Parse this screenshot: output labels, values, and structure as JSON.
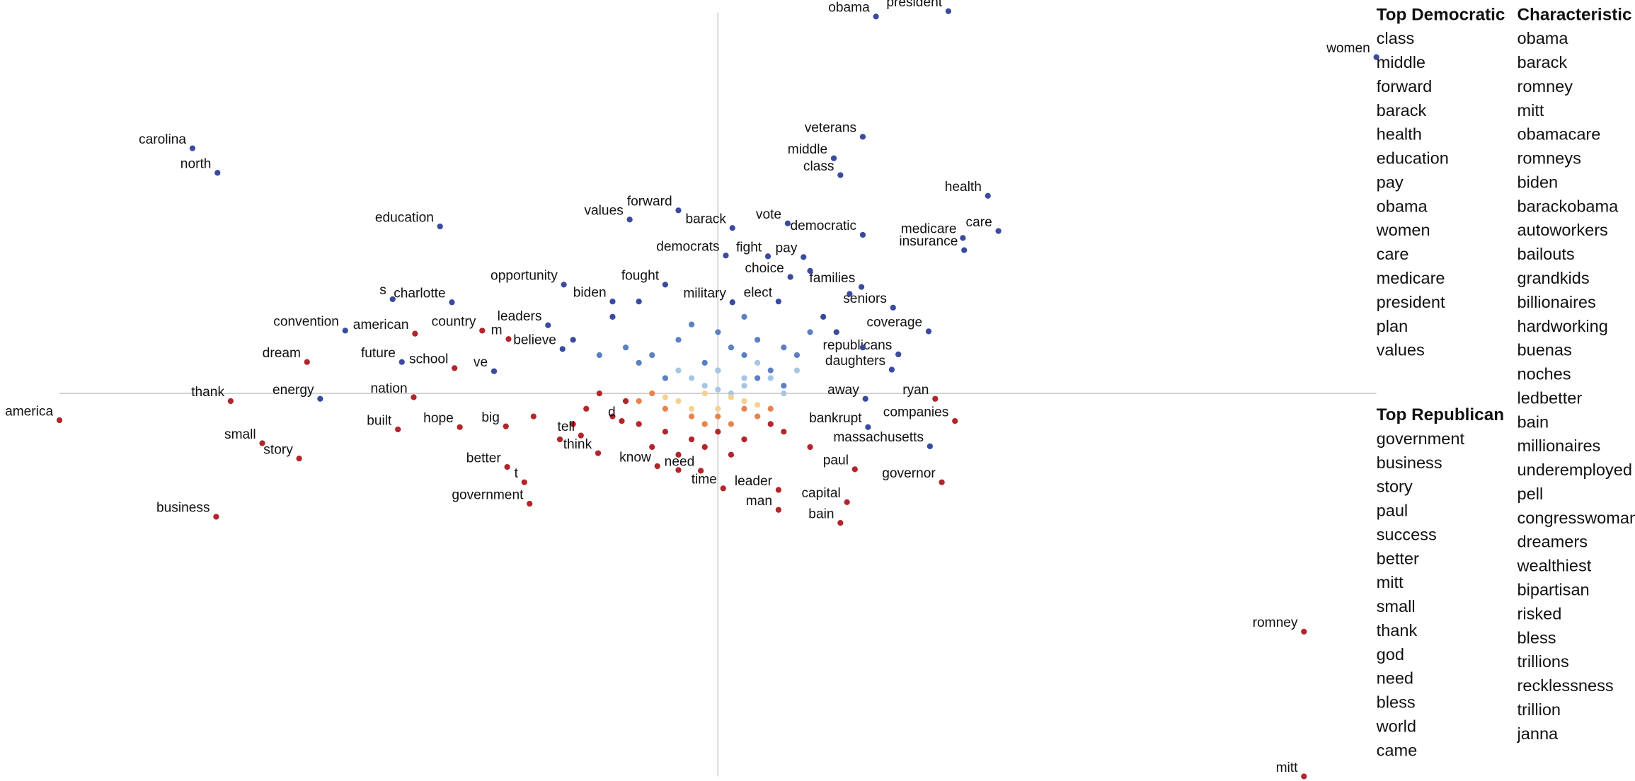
{
  "chart_data": {
    "type": "scatter",
    "xlim": [
      0,
      1
    ],
    "ylim": [
      0,
      1
    ],
    "xticks": [
      0.5
    ],
    "yticks": [
      0.5
    ],
    "series": [
      {
        "color": "#3a4b9e",
        "x": [
          0.62,
          0.675,
          1.0,
          0.101,
          0.12,
          0.61,
          0.588,
          0.593,
          0.705,
          0.289,
          0.433,
          0.47,
          0.511,
          0.553,
          0.61,
          0.713,
          0.686,
          0.687,
          0.506,
          0.538,
          0.565,
          0.383,
          0.46,
          0.555,
          0.609,
          0.253,
          0.298,
          0.42,
          0.511,
          0.546,
          0.633,
          0.217,
          0.371,
          0.382,
          0.66,
          0.637,
          0.632,
          0.26,
          0.33,
          0.198,
          0.612,
          0.614,
          0.661
        ],
        "values": [
          0.992,
          0.999,
          0.939,
          0.82,
          0.788,
          0.835,
          0.807,
          0.785,
          0.758,
          0.718,
          0.727,
          0.739,
          0.716,
          0.722,
          0.707,
          0.712,
          0.703,
          0.687,
          0.68,
          0.679,
          0.678,
          0.642,
          0.642,
          0.652,
          0.639,
          0.623,
          0.619,
          0.62,
          0.619,
          0.62,
          0.612,
          0.582,
          0.589,
          0.558,
          0.581,
          0.551,
          0.531,
          0.541,
          0.529,
          0.493,
          0.493,
          0.456,
          0.431
        ],
        "labels": [
          "obama",
          "president",
          "women",
          "carolina",
          "north",
          "veterans",
          "middle",
          "class",
          "health",
          "education",
          "values",
          "forward",
          "barack",
          "vote",
          "democratic",
          "care",
          "medicare",
          "insurance",
          "democrats",
          "fight",
          "pay",
          "opportunity",
          "fought",
          "choice",
          "families",
          "s",
          "charlotte",
          "biden",
          "military",
          "elect",
          "seniors",
          "convention",
          "leaders",
          "believe",
          "coverage",
          "republicans",
          "daughters",
          "future",
          "ve",
          "energy",
          "away",
          "bankrupt",
          "massachusetts"
        ]
      },
      {
        "color": "#3a4b9e",
        "x": [
          0.42,
          0.44,
          0.58,
          0.6,
          0.57,
          0.59,
          0.39,
          0.61
        ],
        "values": [
          0.6,
          0.62,
          0.6,
          0.63,
          0.66,
          0.58,
          0.57,
          0.56
        ]
      },
      {
        "color": "#5b80c2",
        "x": [
          0.43,
          0.45,
          0.47,
          0.49,
          0.5,
          0.51,
          0.52,
          0.53,
          0.54,
          0.55,
          0.46,
          0.48,
          0.52,
          0.56,
          0.44,
          0.5,
          0.53,
          0.57,
          0.41,
          0.55
        ],
        "values": [
          0.56,
          0.55,
          0.57,
          0.54,
          0.58,
          0.56,
          0.55,
          0.57,
          0.53,
          0.56,
          0.52,
          0.59,
          0.6,
          0.55,
          0.54,
          0.53,
          0.52,
          0.58,
          0.55,
          0.51
        ]
      },
      {
        "color": "#a6c6e3",
        "x": [
          0.48,
          0.5,
          0.52,
          0.54,
          0.51,
          0.53,
          0.49,
          0.55,
          0.56,
          0.47,
          0.52,
          0.5
        ],
        "values": [
          0.52,
          0.53,
          0.51,
          0.52,
          0.5,
          0.54,
          0.51,
          0.5,
          0.53,
          0.53,
          0.52,
          0.505
        ]
      },
      {
        "color": "#b2262b",
        "x": [
          0.4,
          0.42,
          0.44,
          0.46,
          0.48,
          0.5,
          0.52,
          0.54,
          0.43,
          0.45,
          0.47,
          0.49,
          0.51,
          0.41,
          0.39,
          0.36,
          0.38,
          0.55,
          0.57,
          0.47
        ],
        "values": [
          0.48,
          0.47,
          0.46,
          0.45,
          0.44,
          0.45,
          0.44,
          0.46,
          0.49,
          0.43,
          0.42,
          0.43,
          0.42,
          0.5,
          0.46,
          0.47,
          0.44,
          0.45,
          0.43,
          0.4
        ]
      },
      {
        "color": "#e8834f",
        "x": [
          0.44,
          0.46,
          0.48,
          0.5,
          0.52,
          0.54,
          0.45,
          0.49,
          0.51,
          0.53
        ],
        "values": [
          0.49,
          0.48,
          0.47,
          0.47,
          0.48,
          0.48,
          0.5,
          0.46,
          0.46,
          0.47
        ]
      },
      {
        "color": "#f6d28f",
        "x": [
          0.47,
          0.49,
          0.5,
          0.51,
          0.52,
          0.48,
          0.53,
          0.46
        ],
        "values": [
          0.49,
          0.5,
          0.48,
          0.495,
          0.49,
          0.48,
          0.485,
          0.495
        ]
      },
      {
        "color": "#b2262b",
        "x": [
          0.321,
          0.341,
          0.27,
          0.188,
          0.3,
          0.269,
          0.13,
          0.0,
          0.665,
          0.68,
          0.257,
          0.304,
          0.339,
          0.427,
          0.396,
          0.154,
          0.409,
          0.604,
          0.182,
          0.34,
          0.454,
          0.487,
          0.67,
          0.353,
          0.504,
          0.357,
          0.546,
          0.598,
          0.546,
          0.593,
          0.119,
          0.945,
          0.945
        ],
        "values": [
          0.582,
          0.571,
          0.578,
          0.541,
          0.533,
          0.495,
          0.49,
          0.465,
          0.493,
          0.464,
          0.453,
          0.456,
          0.457,
          0.464,
          0.445,
          0.435,
          0.422,
          0.401,
          0.415,
          0.404,
          0.405,
          0.399,
          0.384,
          0.384,
          0.376,
          0.356,
          0.374,
          0.358,
          0.348,
          0.331,
          0.339,
          0.189,
          0.0
        ],
        "labels": [
          "country",
          "m",
          "american",
          "dream",
          "school",
          "nation",
          "thank",
          "america",
          "ryan",
          "companies",
          "built",
          "hope",
          "big",
          "d",
          "tell",
          "small",
          "think",
          "paul",
          "story",
          "better",
          "know",
          "need",
          "governor",
          "t",
          "time",
          "government",
          "leader",
          "capital",
          "man",
          "bain",
          "business",
          "romney",
          "mitt"
        ]
      }
    ],
    "word_lists": [
      {
        "title": "Top Democratic",
        "items": [
          "class",
          "middle",
          "forward",
          "barack",
          "health",
          "education",
          "pay",
          "obama",
          "women",
          "care",
          "medicare",
          "president",
          "plan",
          "values"
        ]
      },
      {
        "title": "Characteristic",
        "items": [
          "obama",
          "barack",
          "romney",
          "mitt",
          "obamacare",
          "romneys",
          "biden",
          "barackobama",
          "autoworkers",
          "bailouts",
          "grandkids",
          "billionaires",
          "hardworking",
          "buenas",
          "noches",
          "ledbetter",
          "bain",
          "millionaires",
          "underemployed",
          "pell",
          "congresswoman",
          "dreamers",
          "wealthiest",
          "bipartisan",
          "risked",
          "bless",
          "trillions",
          "recklessness",
          "trillion",
          "janna"
        ]
      },
      {
        "title": "Top Republican",
        "items": [
          "government",
          "business",
          "story",
          "paul",
          "success",
          "better",
          "mitt",
          "small",
          "thank",
          "god",
          "need",
          "bless",
          "world",
          "came"
        ]
      }
    ]
  }
}
